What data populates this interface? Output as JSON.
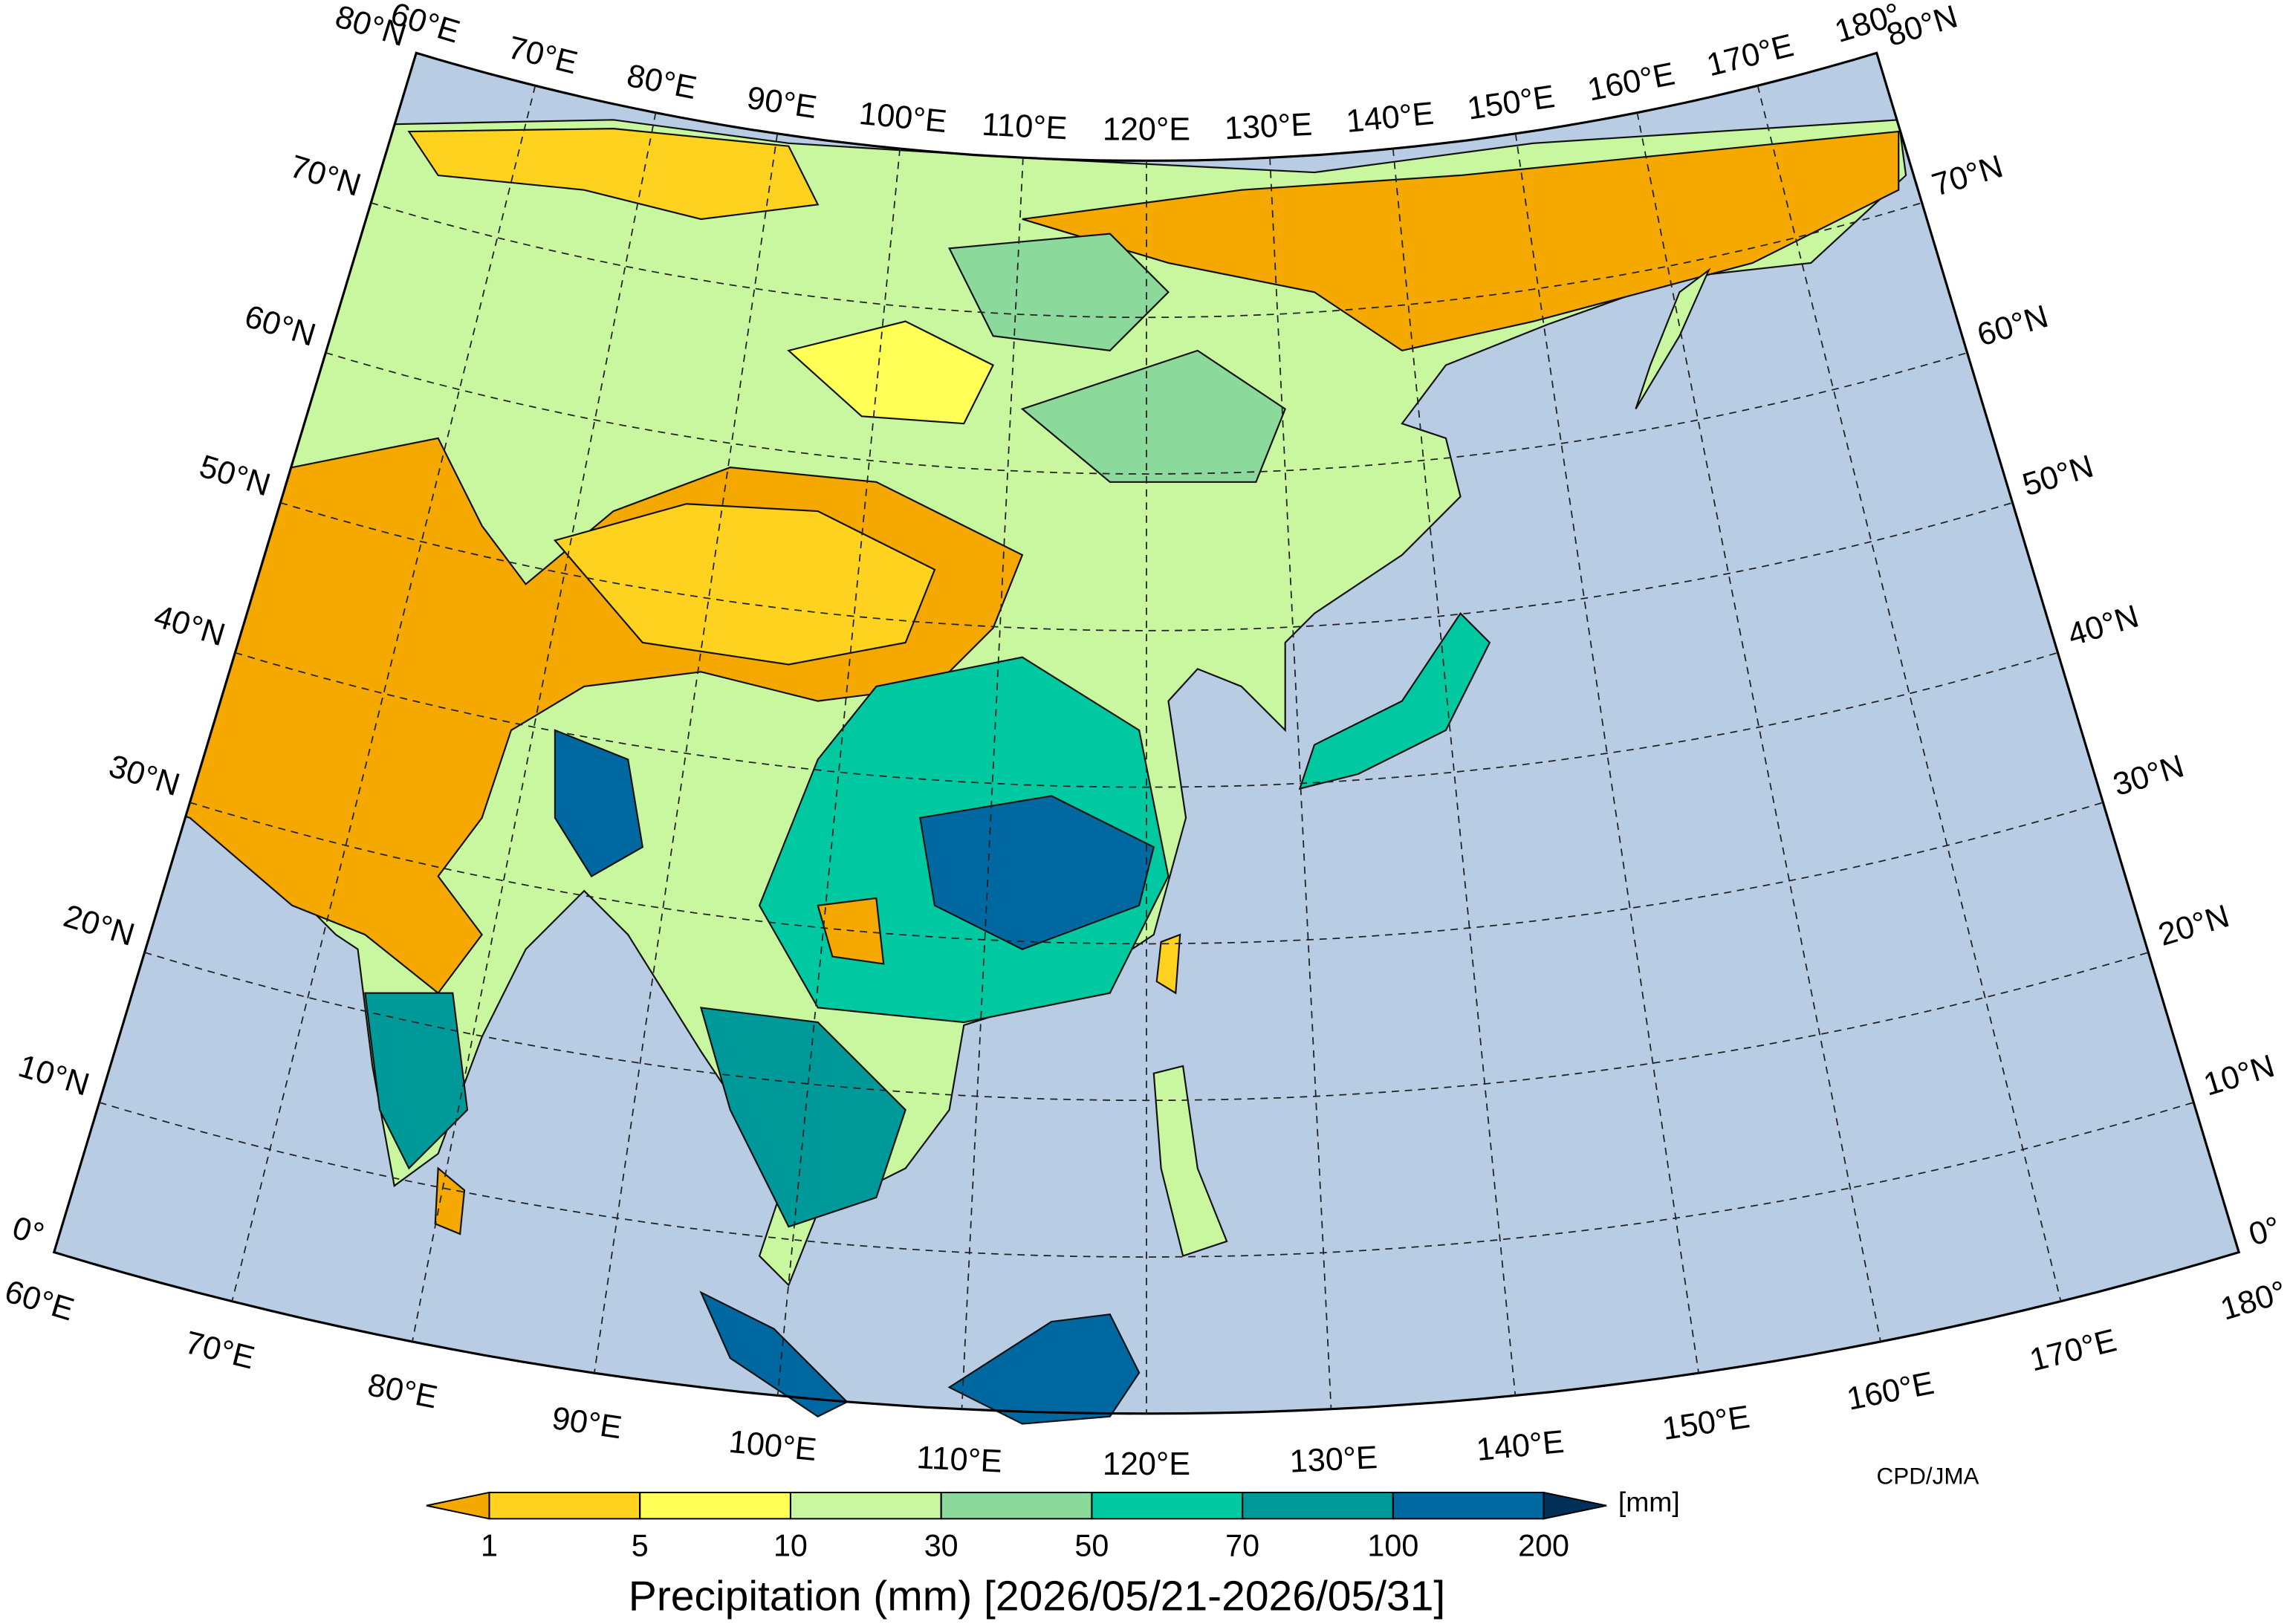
{
  "map": {
    "lat_labels": [
      "80°N",
      "70°N",
      "60°N",
      "50°N",
      "40°N",
      "30°N",
      "20°N",
      "10°N",
      "0°"
    ],
    "lon_labels": [
      "60°E",
      "70°E",
      "80°E",
      "90°E",
      "100°E",
      "110°E",
      "120°E",
      "130°E",
      "140°E",
      "150°E",
      "160°E",
      "170°E",
      "180°"
    ],
    "legend": {
      "ticks": [
        1,
        5,
        10,
        30,
        50,
        70,
        100,
        200
      ],
      "colors": [
        "#f5a800",
        "#ffd21f",
        "#ffff55",
        "#c8f7a0",
        "#8cd99c",
        "#00c8a0",
        "#00999a",
        "#0068a0",
        "#003058"
      ],
      "unit": "[mm]"
    },
    "title": "Precipitation (mm) [2026/05/21-2026/05/31]",
    "credit": "CPD/JMA"
  }
}
